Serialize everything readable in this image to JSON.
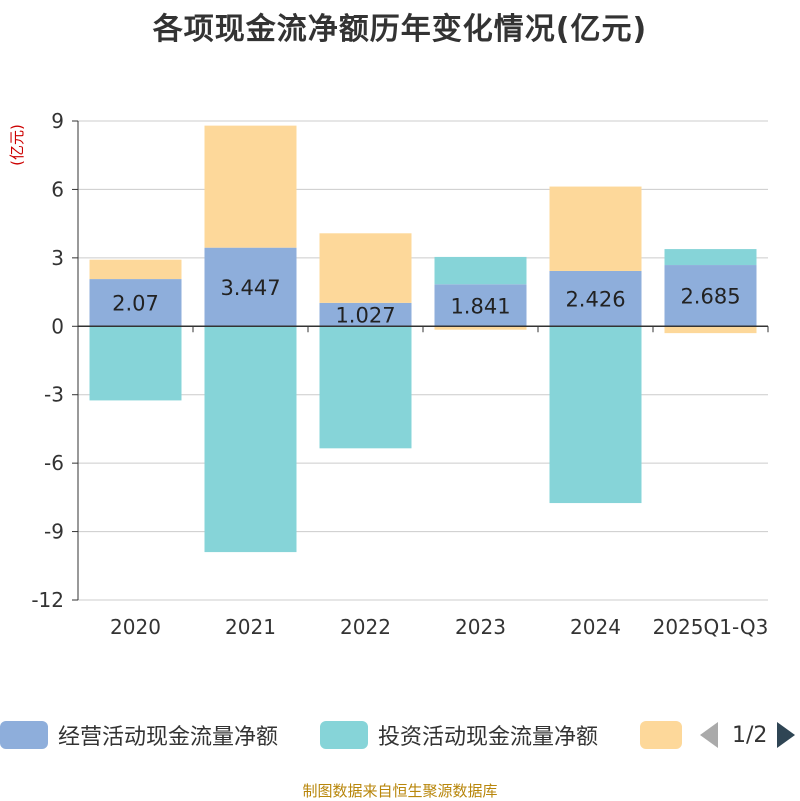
{
  "chart_data": {
    "type": "bar",
    "stacked": true,
    "title": "各项现金流净额历年变化情况(亿元)",
    "ylabel": "(亿元)",
    "xlabel": "",
    "ylim": [
      -12,
      9
    ],
    "yticks": [
      9,
      6,
      3,
      0,
      -3,
      -6,
      -9,
      -12
    ],
    "categories": [
      "2020",
      "2021",
      "2022",
      "2023",
      "2024",
      "2025Q1-Q3"
    ],
    "series": [
      {
        "name": "经营活动现金流量净额",
        "color": "#8eaedb",
        "values": [
          2.07,
          3.447,
          1.027,
          1.841,
          2.426,
          2.685
        ],
        "show_labels": true
      },
      {
        "name": "投资活动现金流量净额",
        "color": "#86d4d8",
        "values": [
          -3.25,
          -9.9,
          -5.35,
          1.2,
          -7.75,
          0.7
        ],
        "show_labels": false
      },
      {
        "name": "",
        "color": "#fdd89a",
        "values": [
          0.85,
          5.35,
          3.05,
          -0.15,
          3.7,
          -0.3
        ],
        "show_labels": false
      }
    ]
  },
  "legend": {
    "page_indicator": "1/2"
  },
  "source_text": "制图数据来自恒生聚源数据库"
}
